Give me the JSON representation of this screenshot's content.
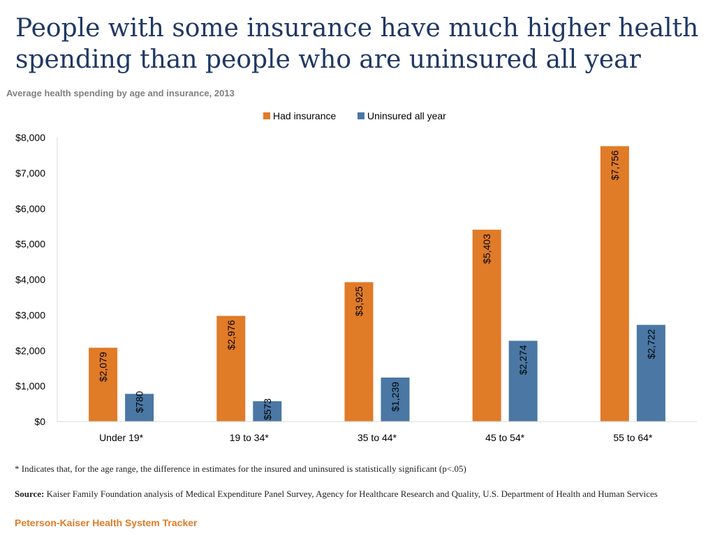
{
  "title": "People with some insurance have much higher health spending than people who are uninsured all year",
  "subtitle": "Average health spending by age and insurance, 2013",
  "footnote": "* Indicates that, for the age range, the difference in estimates for the insured and uninsured is statistically significant (p<.05)",
  "source_label": "Source:",
  "source_text": "Kaiser Family Foundation analysis of Medical Expenditure Panel Survey, Agency for Healthcare Research and Quality, U.S. Department of Health and Human Services",
  "brand": "Peterson-Kaiser Health System Tracker",
  "colors": {
    "title": "#1f3864",
    "insured": "#e07b28",
    "uninsured": "#4a77a4",
    "axis": "#d9d9d9",
    "brand": "#e07b28"
  },
  "chart_data": {
    "type": "bar",
    "title": "Average health spending by age and insurance, 2013",
    "categories": [
      "Under 19*",
      "19 to 34*",
      "35 to 44*",
      "45 to 54*",
      "55 to 64*"
    ],
    "series": [
      {
        "name": "Had insurance",
        "color": "#e07b28",
        "values": [
          2079,
          2976,
          3925,
          5403,
          7756
        ],
        "labels": [
          "$2,079",
          "$2,976",
          "$3,925",
          "$5,403",
          "$7,756"
        ]
      },
      {
        "name": "Uninsured all year",
        "color": "#4a77a4",
        "values": [
          780,
          573,
          1239,
          2274,
          2722
        ],
        "labels": [
          "$780",
          "$573",
          "$1,239",
          "$2,274",
          "$2,722"
        ]
      }
    ],
    "ylim": [
      0,
      8000
    ],
    "yticks": [
      0,
      1000,
      2000,
      3000,
      4000,
      5000,
      6000,
      7000,
      8000
    ],
    "ytick_labels": [
      "$0",
      "$1,000",
      "$2,000",
      "$3,000",
      "$4,000",
      "$5,000",
      "$6,000",
      "$7,000",
      "$8,000"
    ],
    "xlabel": "",
    "ylabel": "",
    "legend_position": "top-center",
    "grid": false
  }
}
